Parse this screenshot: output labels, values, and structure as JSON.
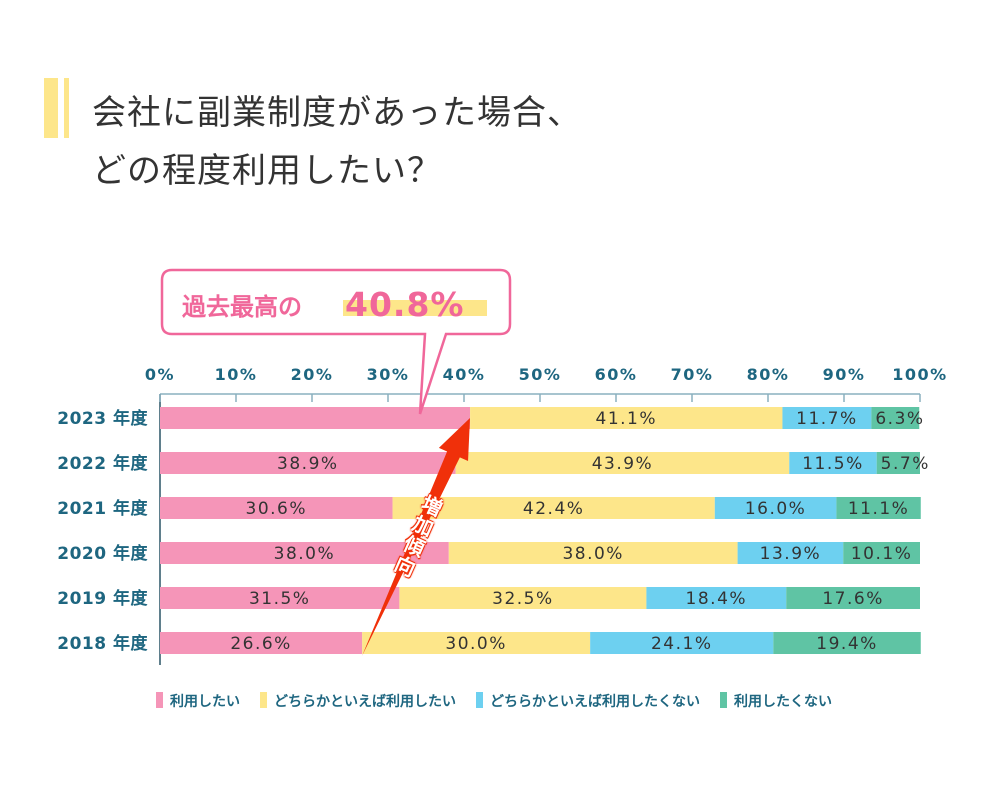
{
  "title_lines": [
    "会社に副業制度があった場合、",
    "どの程度利用したい？"
  ],
  "callout": {
    "prefix": "過去最高の",
    "value": "40.8%"
  },
  "arrow_label": "増加傾向",
  "colors": {
    "pink": "#f595b8",
    "yellow": "#fde68a",
    "blue": "#6dd0f0",
    "green": "#5fc4a4",
    "axis": "#1e6680",
    "callout": "#f0679a",
    "arrow": "#f0300a"
  },
  "chart_data": {
    "type": "bar",
    "orientation": "horizontal",
    "stacked": true,
    "categories": [
      "2023 年度",
      "2022 年度",
      "2021 年度",
      "2020 年度",
      "2019 年度",
      "2018 年度"
    ],
    "series": [
      {
        "name": "利用したい",
        "values": [
          40.8,
          38.9,
          30.6,
          38.0,
          31.5,
          26.6
        ],
        "labels": [
          "",
          "38.9%",
          "30.6%",
          "38.0%",
          "31.5%",
          "26.6%"
        ]
      },
      {
        "name": "どちらかといえば利用したい",
        "values": [
          41.1,
          43.9,
          42.4,
          38.0,
          32.5,
          30.0
        ],
        "labels": [
          "41.1%",
          "43.9%",
          "42.4%",
          "38.0%",
          "32.5%",
          "30.0%"
        ]
      },
      {
        "name": "どちらかといえば利用したくない",
        "values": [
          11.7,
          11.5,
          16.0,
          13.9,
          18.4,
          24.1
        ],
        "labels": [
          "11.7%",
          "11.5%",
          "16.0%",
          "13.9%",
          "18.4%",
          "24.1%"
        ]
      },
      {
        "name": "利用したくない",
        "values": [
          6.3,
          5.7,
          11.1,
          10.1,
          17.6,
          19.4
        ],
        "labels": [
          "6.3%",
          "5.7%",
          "11.1%",
          "10.1%",
          "17.6%",
          "19.4%"
        ]
      }
    ],
    "xticks": [
      "0%",
      "10%",
      "20%",
      "30%",
      "40%",
      "50%",
      "60%",
      "70%",
      "80%",
      "90%",
      "100%"
    ],
    "xlim": [
      0,
      100
    ],
    "legend": "bottom",
    "grid": false
  }
}
